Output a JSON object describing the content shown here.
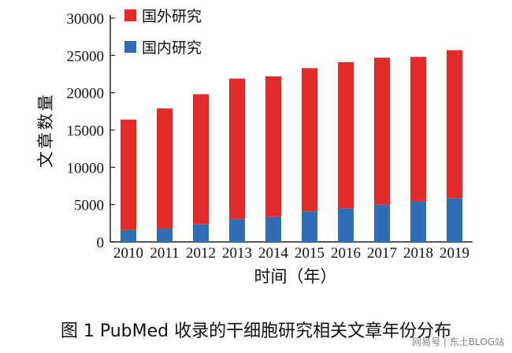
{
  "chart_data": {
    "type": "bar",
    "stacked": true,
    "categories": [
      "2010",
      "2011",
      "2012",
      "2013",
      "2014",
      "2015",
      "2016",
      "2017",
      "2018",
      "2019"
    ],
    "series": [
      {
        "name": "国内研究",
        "color": "#2f6db5",
        "values": [
          1600,
          1800,
          2400,
          3100,
          3400,
          4100,
          4500,
          5000,
          5500,
          5900
        ]
      },
      {
        "name": "国外研究",
        "color": "#e32b2a",
        "values": [
          14800,
          16100,
          17400,
          18800,
          18800,
          19200,
          19600,
          19700,
          19300,
          19800
        ]
      }
    ],
    "ylabel": "文章数量",
    "xlabel": "时间（年）",
    "ylim": [
      0,
      30000
    ],
    "yticks": [
      0,
      5000,
      10000,
      15000,
      20000,
      25000,
      30000
    ],
    "ytick_labels": [
      "0",
      "5000",
      "10000",
      "15000",
      "20000",
      "25000",
      "30000"
    ],
    "legend_order": [
      "国外研究",
      "国内研究"
    ],
    "legend_position": "top-left",
    "grid": false
  },
  "caption": "图 1  PubMed 收录的干细胞研究相关文章年份分布",
  "watermark": "网易号 | 东土BLOG站"
}
